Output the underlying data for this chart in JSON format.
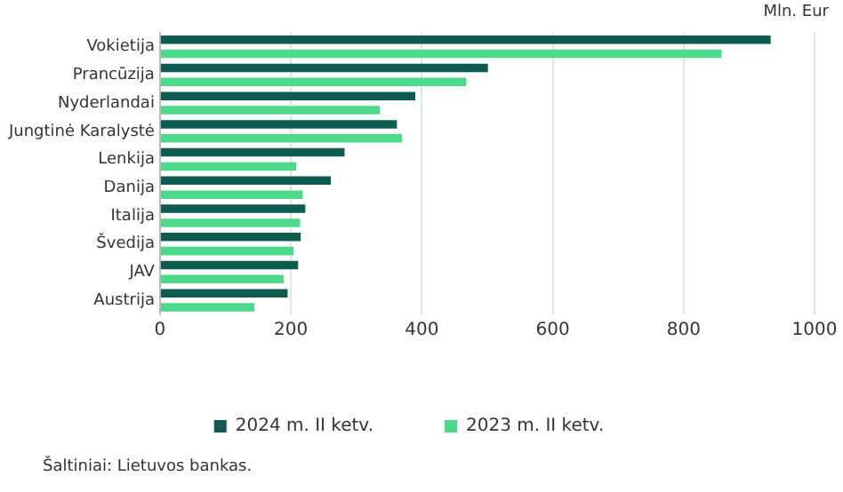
{
  "chart_data": {
    "type": "bar",
    "orientation": "horizontal",
    "categories": [
      "Vokietija",
      "Prancūzija",
      "Nyderlandai",
      "Jungtinė Karalystė",
      "Lenkija",
      "Danija",
      "Italija",
      "Švedija",
      "JAV",
      "Austrija"
    ],
    "series": [
      {
        "name": "2024 m. II ketv.",
        "color": "#0e5c4f",
        "values": [
          933,
          501,
          390,
          362,
          282,
          261,
          222,
          215,
          211,
          195
        ]
      },
      {
        "name": "2023 m. II ketv.",
        "color": "#4cd98a",
        "values": [
          858,
          468,
          336,
          370,
          208,
          218,
          214,
          204,
          189,
          144
        ]
      }
    ],
    "xlim": [
      0,
      1000
    ],
    "xticks": [
      0,
      200,
      400,
      600,
      800,
      1000
    ],
    "grid": "x",
    "legend": "bottom",
    "annotations": [
      "Mln. Eur",
      "Šaltiniai: Lietuvos bankas."
    ]
  }
}
